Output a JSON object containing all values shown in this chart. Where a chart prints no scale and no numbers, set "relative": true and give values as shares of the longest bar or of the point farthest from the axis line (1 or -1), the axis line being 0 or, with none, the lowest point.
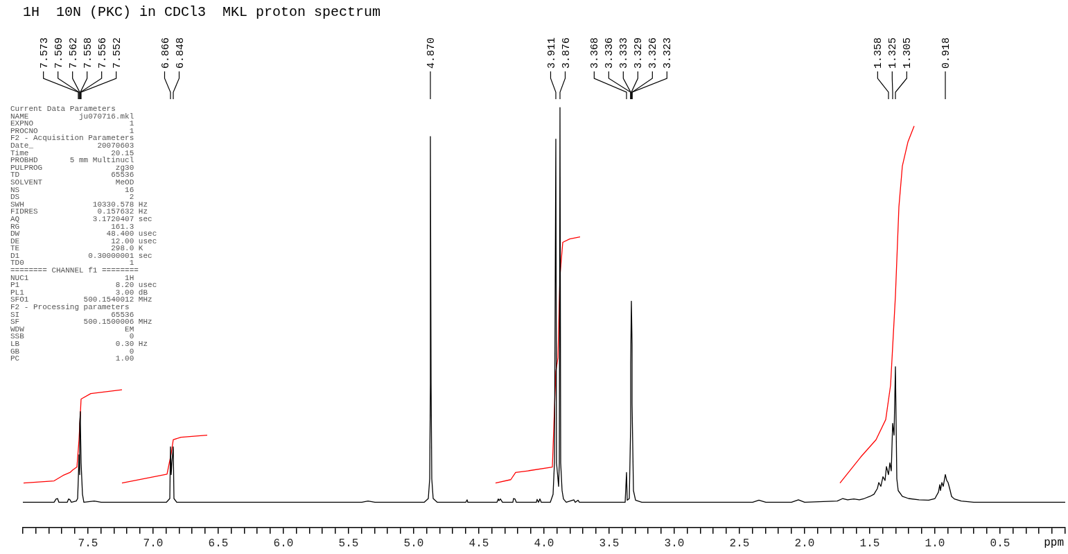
{
  "chart_data": {
    "type": "line",
    "title": "1H  10N (PKC) in CDCl3  MKL proton spectrum",
    "xlabel": "ppm",
    "relative": true,
    "marker": "none",
    "legend": false,
    "grid": false,
    "xlim": [
      8.0,
      0.0
    ],
    "xticks": [
      {
        "value": 8,
        "label": null
      },
      {
        "value": 7.9,
        "label": null
      },
      {
        "value": 7.8,
        "label": null
      },
      {
        "value": 7.7,
        "label": null
      },
      {
        "value": 7.6,
        "label": null
      },
      7.5,
      {
        "value": 7.4,
        "label": null
      },
      {
        "value": 7.3,
        "label": null
      },
      {
        "value": 7.2,
        "label": null
      },
      {
        "value": 7.1,
        "label": null
      },
      {
        "value": 7,
        "label": "7.0"
      },
      {
        "value": 6.9,
        "label": null
      },
      {
        "value": 6.8,
        "label": null
      },
      {
        "value": 6.7,
        "label": null
      },
      {
        "value": 6.6,
        "label": null
      },
      6.5,
      {
        "value": 6.4,
        "label": null
      },
      {
        "value": 6.3,
        "label": null
      },
      {
        "value": 6.2,
        "label": null
      },
      {
        "value": 6.1,
        "label": null
      },
      {
        "value": 6,
        "label": "6.0"
      },
      {
        "value": 5.9,
        "label": null
      },
      {
        "value": 5.8,
        "label": null
      },
      {
        "value": 5.7,
        "label": null
      },
      {
        "value": 5.6,
        "label": null
      },
      5.5,
      {
        "value": 5.4,
        "label": null
      },
      {
        "value": 5.3,
        "label": null
      },
      {
        "value": 5.2,
        "label": null
      },
      {
        "value": 5.1,
        "label": null
      },
      {
        "value": 5,
        "label": "5.0"
      },
      {
        "value": 4.9,
        "label": null
      },
      {
        "value": 4.8,
        "label": null
      },
      {
        "value": 4.7,
        "label": null
      },
      {
        "value": 4.6,
        "label": null
      },
      4.5,
      {
        "value": 4.4,
        "label": null
      },
      {
        "value": 4.3,
        "label": null
      },
      {
        "value": 4.2,
        "label": null
      },
      {
        "value": 4.1,
        "label": null
      },
      {
        "value": 4,
        "label": "4.0"
      },
      {
        "value": 3.9,
        "label": null
      },
      {
        "value": 3.8,
        "label": null
      },
      {
        "value": 3.7,
        "label": null
      },
      {
        "value": 3.6,
        "label": null
      },
      3.5,
      {
        "value": 3.4,
        "label": null
      },
      {
        "value": 3.3,
        "label": null
      },
      {
        "value": 3.2,
        "label": null
      },
      {
        "value": 3.1,
        "label": null
      },
      {
        "value": 3,
        "label": "3.0"
      },
      {
        "value": 2.9,
        "label": null
      },
      {
        "value": 2.8,
        "label": null
      },
      {
        "value": 2.7,
        "label": null
      },
      {
        "value": 2.6,
        "label": null
      },
      2.5,
      {
        "value": 2.4,
        "label": null
      },
      {
        "value": 2.3,
        "label": null
      },
      {
        "value": 2.2,
        "label": null
      },
      {
        "value": 2.1,
        "label": null
      },
      {
        "value": 2,
        "label": "2.0"
      },
      {
        "value": 1.9,
        "label": null
      },
      {
        "value": 1.8,
        "label": null
      },
      {
        "value": 1.7,
        "label": null
      },
      {
        "value": 1.6,
        "label": null
      },
      1.5,
      {
        "value": 1.4,
        "label": null
      },
      {
        "value": 1.3,
        "label": null
      },
      {
        "value": 1.2,
        "label": null
      },
      {
        "value": 1.1,
        "label": null
      },
      {
        "value": 1,
        "label": "1.0"
      },
      {
        "value": 0.9,
        "label": null
      },
      {
        "value": 0.8,
        "label": null
      },
      {
        "value": 0.7,
        "label": null
      },
      {
        "value": 0.6,
        "label": null
      },
      0.5,
      {
        "value": 0.4,
        "label": null
      },
      {
        "value": 0.3,
        "label": null
      },
      {
        "value": 0.2,
        "label": null
      },
      {
        "value": 0.1,
        "label": null
      },
      {
        "value": 0,
        "label": null
      }
    ],
    "series": [
      {
        "color": "#000000",
        "x": [
          8.0,
          7.76,
          7.745,
          7.735,
          7.725,
          7.66,
          7.65,
          7.64,
          7.63,
          7.59,
          7.58,
          7.573,
          7.569,
          7.565,
          7.562,
          7.558,
          7.556,
          7.552,
          7.545,
          7.53,
          7.45,
          7.4,
          6.9,
          6.875,
          6.866,
          6.86,
          6.854,
          6.848,
          6.84,
          6.82,
          5.4,
          5.35,
          5.3,
          4.92,
          4.89,
          4.88,
          4.875,
          4.87,
          4.865,
          4.86,
          4.85,
          4.82,
          4.6,
          4.593,
          4.585,
          4.36,
          4.353,
          4.345,
          4.335,
          4.32,
          4.24,
          4.232,
          4.225,
          4.215,
          4.06,
          4.055,
          4.045,
          4.03,
          4.02,
          3.95,
          3.93,
          3.918,
          3.911,
          3.904,
          3.89,
          3.882,
          3.876,
          3.87,
          3.86,
          3.85,
          3.83,
          3.77,
          3.76,
          3.74,
          3.73,
          3.38,
          3.368,
          3.36,
          3.345,
          3.336,
          3.333,
          3.329,
          3.326,
          3.323,
          3.315,
          3.3,
          3.25,
          2.4,
          2.35,
          2.3,
          2.1,
          2.05,
          2.0,
          1.75,
          1.71,
          1.67,
          1.62,
          1.58,
          1.54,
          1.5,
          1.47,
          1.44,
          1.43,
          1.415,
          1.4,
          1.385,
          1.37,
          1.358,
          1.345,
          1.335,
          1.325,
          1.315,
          1.305,
          1.298,
          1.29,
          1.28,
          1.25,
          1.2,
          1.12,
          1.05,
          1.0,
          0.975,
          0.965,
          0.955,
          0.945,
          0.935,
          0.918,
          0.91,
          0.9,
          0.885,
          0.87,
          0.85,
          0.8,
          0.7,
          0.0
        ],
        "values": [
          0.06,
          0.06,
          0.068,
          0.069,
          0.06,
          0.06,
          0.068,
          0.066,
          0.06,
          0.063,
          0.069,
          0.116,
          0.173,
          0.126,
          0.248,
          0.276,
          0.248,
          0.154,
          0.079,
          0.06,
          0.063,
          0.06,
          0.06,
          0.069,
          0.192,
          0.126,
          0.154,
          0.192,
          0.069,
          0.06,
          0.06,
          0.063,
          0.06,
          0.06,
          0.069,
          0.116,
          0.342,
          0.931,
          0.342,
          0.116,
          0.069,
          0.06,
          0.06,
          0.066,
          0.06,
          0.06,
          0.068,
          0.064,
          0.068,
          0.06,
          0.06,
          0.069,
          0.068,
          0.06,
          0.06,
          0.067,
          0.06,
          0.068,
          0.06,
          0.06,
          0.079,
          0.154,
          0.925,
          0.154,
          0.098,
          0.154,
          1,
          0.154,
          0.088,
          0.068,
          0.06,
          0.066,
          0.06,
          0.065,
          0.06,
          0.06,
          0.131,
          0.065,
          0.069,
          0.248,
          0.389,
          0.539,
          0.436,
          0.295,
          0.088,
          0.065,
          0.06,
          0.06,
          0.065,
          0.06,
          0.06,
          0.066,
          0.06,
          0.063,
          0.069,
          0.066,
          0.068,
          0.066,
          0.069,
          0.074,
          0.079,
          0.093,
          0.107,
          0.098,
          0.121,
          0.112,
          0.145,
          0.126,
          0.154,
          0.135,
          0.248,
          0.22,
          0.383,
          0.248,
          0.116,
          0.088,
          0.074,
          0.069,
          0.066,
          0.065,
          0.069,
          0.084,
          0.102,
          0.088,
          0.107,
          0.098,
          0.126,
          0.112,
          0.107,
          0.088,
          0.074,
          0.068,
          0.063,
          0.06,
          0.06
        ]
      },
      {
        "color": "#ff0000",
        "x": [
          7.997,
          7.758,
          7.694,
          7.64,
          7.619,
          7.587,
          7.571,
          7.555,
          7.48,
          7.24
        ],
        "values": [
          0.106,
          0.111,
          0.124,
          0.131,
          0.137,
          0.144,
          0.209,
          0.306,
          0.319,
          0.328
        ]
      },
      {
        "color": "#ff0000",
        "x": [
          7.24,
          6.894,
          6.862,
          6.847,
          6.788,
          6.585
        ],
        "values": [
          0.106,
          0.127,
          0.176,
          0.209,
          0.215,
          0.22
        ]
      },
      {
        "color": "#ff0000",
        "x": [
          4.375,
          4.257,
          4.22,
          4.124,
          3.938,
          3.911,
          3.895,
          3.879,
          3.858,
          3.804,
          3.725
        ],
        "values": [
          0.106,
          0.114,
          0.131,
          0.135,
          0.144,
          0.372,
          0.404,
          0.6,
          0.679,
          0.687,
          0.692
        ]
      },
      {
        "color": "#ff0000",
        "x": [
          1.727,
          1.567,
          1.45,
          1.38,
          1.338,
          1.301,
          1.274,
          1.248,
          1.205,
          1.162
        ],
        "values": [
          0.106,
          0.168,
          0.209,
          0.257,
          0.339,
          0.552,
          0.763,
          0.861,
          0.918,
          0.956
        ]
      }
    ],
    "annotations": [
      {
        "text": "7.573",
        "x": 7.573
      },
      {
        "text": "7.569",
        "x": 7.569
      },
      {
        "text": "7.562",
        "x": 7.562
      },
      {
        "text": "7.558",
        "x": 7.558
      },
      {
        "text": "7.556",
        "x": 7.556
      },
      {
        "text": "7.552",
        "x": 7.552
      },
      {
        "text": "6.866",
        "x": 6.866
      },
      {
        "text": "6.848",
        "x": 6.848
      },
      {
        "text": "4.870",
        "x": 4.87
      },
      {
        "text": "3.911",
        "x": 3.911
      },
      {
        "text": "3.876",
        "x": 3.876
      },
      {
        "text": "3.368",
        "x": 3.368
      },
      {
        "text": "3.336",
        "x": 3.336
      },
      {
        "text": "3.333",
        "x": 3.333
      },
      {
        "text": "3.329",
        "x": 3.329
      },
      {
        "text": "3.326",
        "x": 3.326
      },
      {
        "text": "3.323",
        "x": 3.323
      },
      {
        "text": "1.358",
        "x": 1.358
      },
      {
        "text": "1.325",
        "x": 1.325
      },
      {
        "text": "1.305",
        "x": 1.305
      },
      {
        "text": "0.918",
        "x": 0.918
      },
      "Current Data Parameters",
      "NAME           ju070716.mkl",
      "EXPNO                     1",
      "PROCNO                    1",
      "F2 - Acquisition Parameters",
      "Date_              20070603",
      "Time                  20.15",
      "PROBHD       5 mm Multinucl",
      "PULPROG                zg30",
      "TD                    65536",
      "SOLVENT                MeOD",
      "NS                       16",
      "DS                        2",
      "SWH               10330.578 Hz",
      "FIDRES             0.157632 Hz",
      "AQ                3.1720407 sec",
      "RG                    161.3",
      "DW                   48.400 usec",
      "DE                    12.00 usec",
      "TE                    298.0 K",
      "D1               0.30000001 sec",
      "TD0                       1",
      "======== CHANNEL f1 ========",
      "NUC1                     1H",
      "P1                     8.20 usec",
      "PL1                    3.00 dB",
      "SFO1            500.1540012 MHz",
      "F2 - Processing parameters",
      "SI                    65536",
      "SF              500.1500006 MHz",
      "WDW                      EM",
      "SSB                       0",
      "LB                     0.30 Hz",
      "GB                        0",
      "PC                     1.00"
    ]
  }
}
